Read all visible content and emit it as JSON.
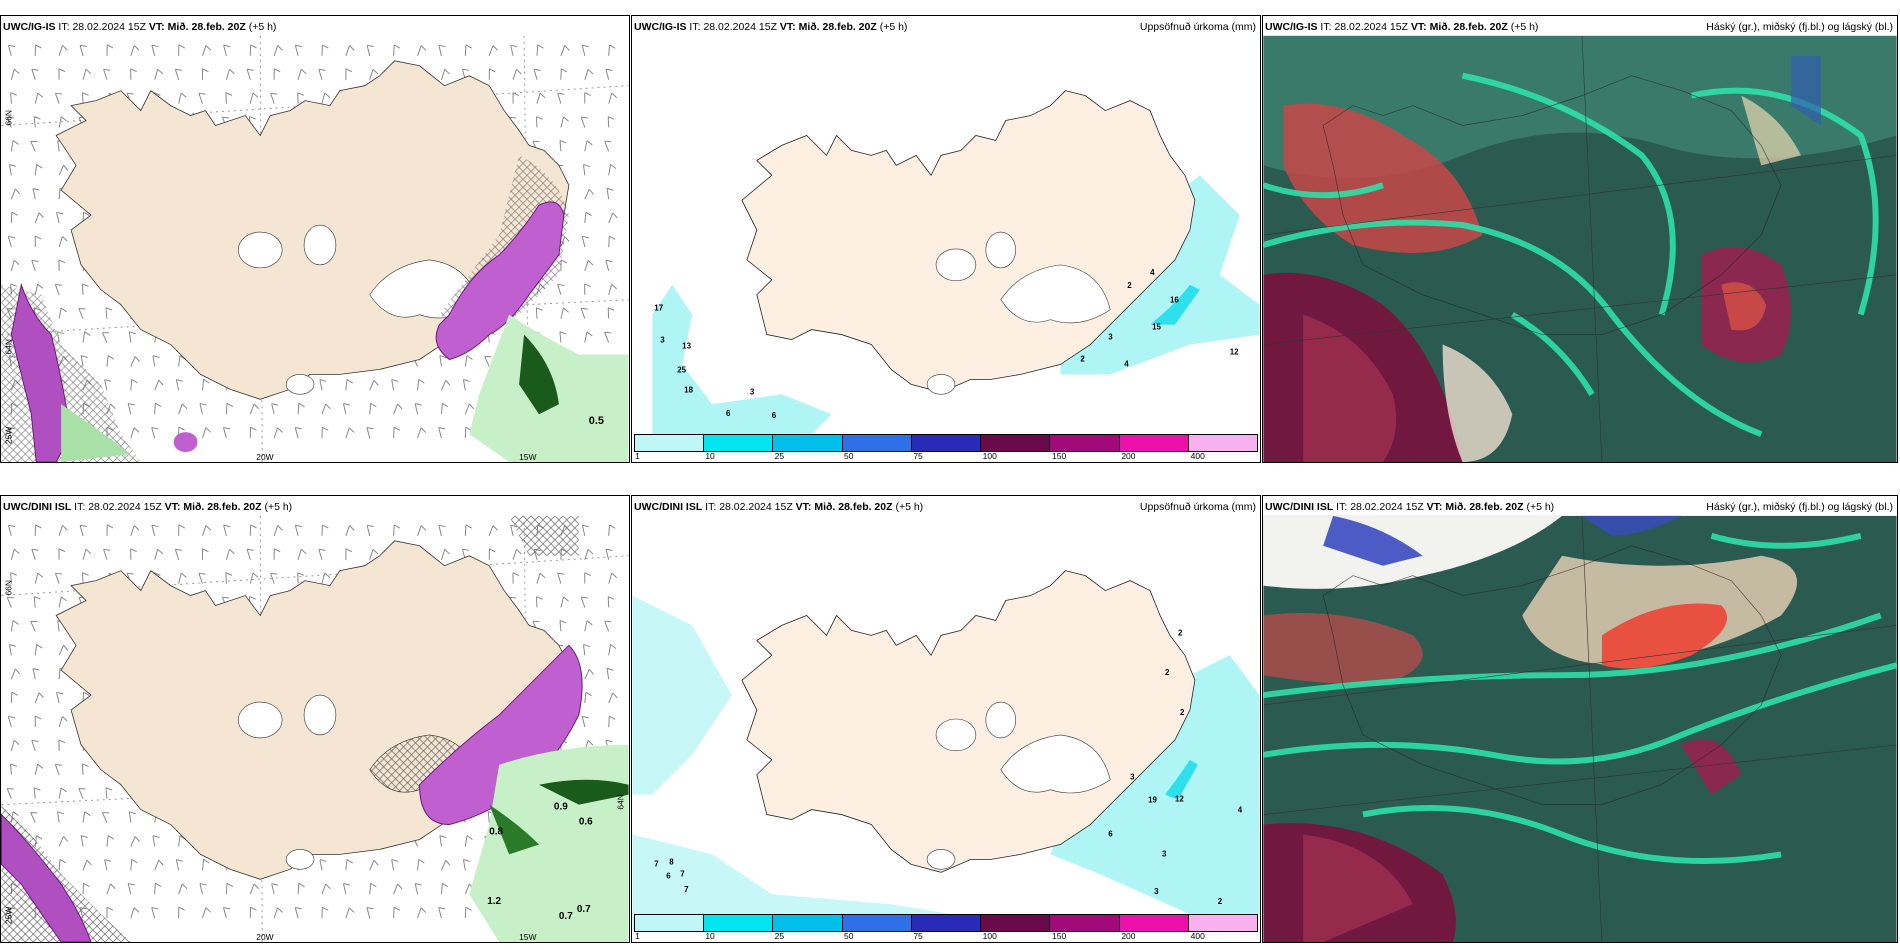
{
  "panels": [
    {
      "model": "UWC/IG-IS",
      "it_label": "IT:",
      "it_value": "28.02.2024 15Z",
      "vt_label": "VT:",
      "vt_value": "Mið. 28.feb. 20Z",
      "lead": "(+5 h)",
      "title": "",
      "lon_labels": [
        "20W",
        "15W"
      ],
      "lat_labels": [
        "66N",
        "64N",
        "25W"
      ],
      "values": [
        "0.5"
      ]
    },
    {
      "model": "UWC/IG-IS",
      "it_label": "IT:",
      "it_value": "28.02.2024 15Z",
      "vt_label": "VT:",
      "vt_value": "Mið. 28.feb. 20Z",
      "lead": "(+5 h)",
      "title": "Uppsöfnuð úrkoma (mm)",
      "values": [
        "17",
        "3",
        "13",
        "25",
        "18",
        "3",
        "6",
        "6",
        "2",
        "16",
        "15",
        "3",
        "2",
        "4",
        "12",
        "4"
      ]
    },
    {
      "model": "UWC/IG-IS",
      "it_label": "IT:",
      "it_value": "28.02.2024 15Z",
      "vt_label": "VT:",
      "vt_value": "Mið. 28.feb. 20Z",
      "lead": "(+5 h)",
      "title": "Háský (gr.), miðský (fj.bl.) og lágský (bl.)"
    },
    {
      "model": "UWC/DINI ISL",
      "it_label": "IT:",
      "it_value": "28.02.2024 15Z",
      "vt_label": "VT:",
      "vt_value": "Mið. 28.feb. 20Z",
      "lead": "(+5 h)",
      "title": "",
      "lon_labels": [
        "20W",
        "15W"
      ],
      "lat_labels": [
        "66N",
        "64N",
        "25W"
      ],
      "values": [
        "0.8",
        "0.6",
        "0.9",
        "1.2",
        "0.7",
        "0.7"
      ]
    },
    {
      "model": "UWC/DINI ISL",
      "it_label": "IT:",
      "it_value": "28.02.2024 15Z",
      "vt_label": "VT:",
      "vt_value": "Mið. 28.feb. 20Z",
      "lead": "(+5 h)",
      "title": "Uppsöfnuð úrkoma (mm)",
      "values": [
        "7",
        "8",
        "6",
        "7",
        "7",
        "2",
        "2",
        "2",
        "3",
        "19",
        "12",
        "4",
        "6",
        "3",
        "3",
        "2"
      ]
    },
    {
      "model": "UWC/DINI ISL",
      "it_label": "IT:",
      "it_value": "28.02.2024 15Z",
      "vt_label": "VT:",
      "vt_value": "Mið. 28.feb. 20Z",
      "lead": "(+5 h)",
      "title": "Háský (gr.), miðský (fj.bl.) og lágský (bl.)"
    }
  ],
  "precip_scale": {
    "labels": [
      "1",
      "10",
      "25",
      "50",
      "75",
      "100",
      "150",
      "200",
      "400"
    ],
    "colors": [
      "#bff7f7",
      "#00e5ee",
      "#00bfe8",
      "#2f6fe8",
      "#2a2ab8",
      "#6a0a4a",
      "#a00a7a",
      "#ee10aa",
      "#f7b0f0"
    ]
  },
  "colors": {
    "land": "#f5e6d3",
    "land_precip": "#fdf0e2",
    "sea": "#ffffff",
    "precip_light": "#b0f5f5",
    "precip_mid": "#2ee0ee",
    "snow_purple": "#c060d0",
    "green_light": "#c8f0c8",
    "green_dark": "#1a5a1a",
    "cloud_teal": "#2aa88a",
    "cloud_dark": "#2b5a50",
    "cloud_red": "#c84848",
    "cloud_maroon": "#701840"
  }
}
